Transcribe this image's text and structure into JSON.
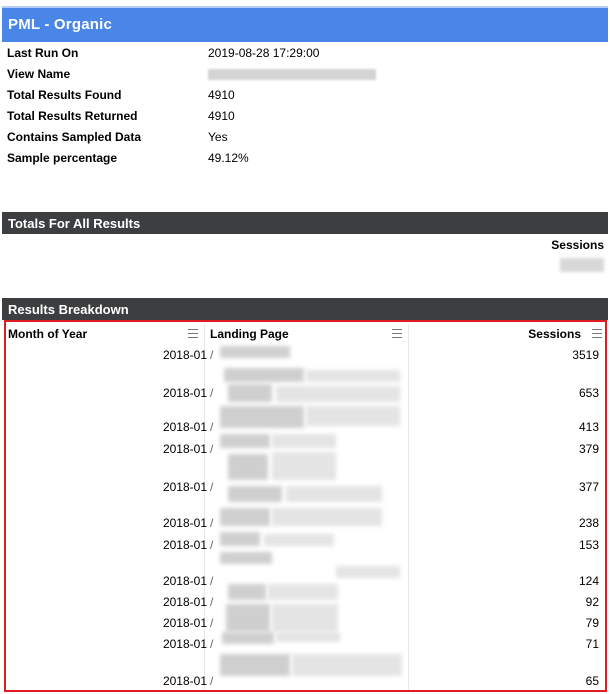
{
  "title": "PML - Organic",
  "meta": [
    {
      "label": "Last Run On",
      "value": "2019-08-28 17:29:00"
    },
    {
      "label": "View Name",
      "value": ""
    },
    {
      "label": "Total Results Found",
      "value": "4910"
    },
    {
      "label": "Total Results Returned",
      "value": "4910"
    },
    {
      "label": "Contains Sampled Data",
      "value": "Yes"
    },
    {
      "label": "Sample percentage",
      "value": "49.12%"
    }
  ],
  "totals": {
    "title": "Totals For All Results",
    "header": "Sessions"
  },
  "breakdown": {
    "title": "Results Breakdown",
    "columns": [
      "Month of Year",
      "Landing Page",
      "Sessions"
    ],
    "rows": [
      {
        "month": "2018-01",
        "page": "/",
        "sessions": "3519"
      },
      {
        "month": "2018-01",
        "page": "/",
        "sessions": "653"
      },
      {
        "month": "2018-01",
        "page": "/",
        "sessions": "413"
      },
      {
        "month": "2018-01",
        "page": "/",
        "sessions": "379"
      },
      {
        "month": "2018-01",
        "page": "/",
        "sessions": "377"
      },
      {
        "month": "2018-01",
        "page": "/",
        "sessions": "238"
      },
      {
        "month": "2018-01",
        "page": "/",
        "sessions": "153"
      },
      {
        "month": "2018-01",
        "page": "/",
        "sessions": "124"
      },
      {
        "month": "2018-01",
        "page": "/",
        "sessions": "92"
      },
      {
        "month": "2018-01",
        "page": "/",
        "sessions": "79"
      },
      {
        "month": "2018-01",
        "page": "/",
        "sessions": "71"
      },
      {
        "month": "2018-01",
        "page": "/",
        "sessions": "65"
      }
    ]
  },
  "colors": {
    "title_bar": "#4a86e8",
    "section_bar": "#3c3e40",
    "highlight_border": "#e11b22"
  },
  "icons": {
    "column_menu": "hamburger-menu-icon"
  }
}
